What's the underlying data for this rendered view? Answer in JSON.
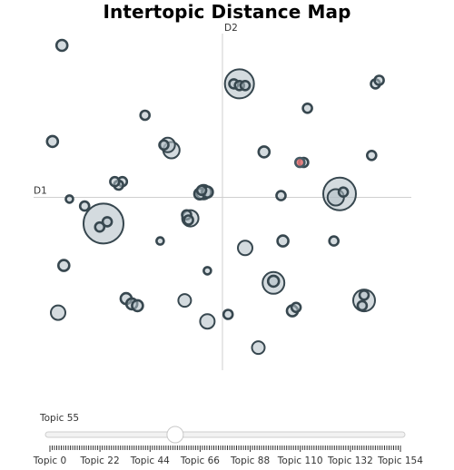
{
  "chart_data": {
    "type": "scatter",
    "title": "Intertopic Distance Map",
    "xlabel": "D1",
    "ylabel": "D2",
    "xlim": [
      -10,
      10
    ],
    "ylim": [
      -10,
      10
    ],
    "grid": false,
    "selected_topic": 55,
    "points": [
      {
        "x": -8.5,
        "y": 8.7,
        "r": 6
      },
      {
        "x": 0.9,
        "y": 6.5,
        "r": 16
      },
      {
        "x": 0.6,
        "y": 6.5,
        "r": 5
      },
      {
        "x": 0.9,
        "y": 6.4,
        "r": 5
      },
      {
        "x": 1.2,
        "y": 6.4,
        "r": 5
      },
      {
        "x": 8.1,
        "y": 6.5,
        "r": 5
      },
      {
        "x": 8.3,
        "y": 6.7,
        "r": 5
      },
      {
        "x": -4.1,
        "y": 4.7,
        "r": 5
      },
      {
        "x": 4.5,
        "y": 5.1,
        "r": 5
      },
      {
        "x": -9.0,
        "y": 3.2,
        "r": 6
      },
      {
        "x": -2.9,
        "y": 3.0,
        "r": 8
      },
      {
        "x": -2.7,
        "y": 2.7,
        "r": 9
      },
      {
        "x": -3.1,
        "y": 3.0,
        "r": 5
      },
      {
        "x": 2.2,
        "y": 2.6,
        "r": 6
      },
      {
        "x": 4.3,
        "y": 2.0,
        "r": 5
      },
      {
        "x": 7.9,
        "y": 2.4,
        "r": 5
      },
      {
        "x": -5.3,
        "y": 0.9,
        "r": 5
      },
      {
        "x": -5.5,
        "y": 0.7,
        "r": 5
      },
      {
        "x": -5.7,
        "y": 0.9,
        "r": 5
      },
      {
        "x": -1.0,
        "y": 0.3,
        "r": 8
      },
      {
        "x": -1.2,
        "y": 0.2,
        "r": 6
      },
      {
        "x": -0.8,
        "y": 0.3,
        "r": 6
      },
      {
        "x": -1.1,
        "y": 0.4,
        "r": 5
      },
      {
        "x": 3.1,
        "y": 0.1,
        "r": 5
      },
      {
        "x": 6.2,
        "y": 0.2,
        "r": 18
      },
      {
        "x": 6.0,
        "y": 0.0,
        "r": 9
      },
      {
        "x": 6.4,
        "y": 0.3,
        "r": 5
      },
      {
        "x": -8.1,
        "y": -0.1,
        "r": 4
      },
      {
        "x": -7.3,
        "y": -0.5,
        "r": 5
      },
      {
        "x": -6.3,
        "y": -1.5,
        "r": 22
      },
      {
        "x": -6.5,
        "y": -1.7,
        "r": 5
      },
      {
        "x": -6.1,
        "y": -1.4,
        "r": 5
      },
      {
        "x": -1.9,
        "y": -1.0,
        "r": 5
      },
      {
        "x": -1.8,
        "y": -1.3,
        "r": 5
      },
      {
        "x": -1.7,
        "y": -1.2,
        "r": 9
      },
      {
        "x": -3.3,
        "y": -2.5,
        "r": 4
      },
      {
        "x": 1.2,
        "y": -2.9,
        "r": 8
      },
      {
        "x": 3.2,
        "y": -2.5,
        "r": 6
      },
      {
        "x": 5.9,
        "y": -2.5,
        "r": 5
      },
      {
        "x": -8.4,
        "y": -3.9,
        "r": 6
      },
      {
        "x": -0.8,
        "y": -4.2,
        "r": 4
      },
      {
        "x": 2.7,
        "y": -4.9,
        "r": 12
      },
      {
        "x": 2.7,
        "y": -4.8,
        "r": 6
      },
      {
        "x": -5.1,
        "y": -5.8,
        "r": 6
      },
      {
        "x": -4.8,
        "y": -6.1,
        "r": 6
      },
      {
        "x": -4.5,
        "y": -6.2,
        "r": 6
      },
      {
        "x": -2.0,
        "y": -5.9,
        "r": 7
      },
      {
        "x": -8.7,
        "y": -6.6,
        "r": 8
      },
      {
        "x": 7.5,
        "y": -5.9,
        "r": 12
      },
      {
        "x": 7.5,
        "y": -5.6,
        "r": 5
      },
      {
        "x": 7.4,
        "y": -6.2,
        "r": 5
      },
      {
        "x": 3.7,
        "y": -6.5,
        "r": 6
      },
      {
        "x": 3.9,
        "y": -6.3,
        "r": 5
      },
      {
        "x": -0.8,
        "y": -7.1,
        "r": 8
      },
      {
        "x": 0.3,
        "y": -6.7,
        "r": 5
      },
      {
        "x": 1.9,
        "y": -8.6,
        "r": 7
      },
      {
        "x": 4.1,
        "y": 2.0,
        "r": 5,
        "selected": true
      }
    ]
  },
  "slider": {
    "label": "Topic 55",
    "min": 0,
    "max": 154,
    "value": 55,
    "tick_labels": [
      "Topic 0",
      "Topic 22",
      "Topic 44",
      "Topic 66",
      "Topic 88",
      "Topic 110",
      "Topic 132",
      "Topic 154"
    ],
    "tick_values": [
      0,
      22,
      44,
      66,
      88,
      110,
      132,
      154
    ]
  }
}
